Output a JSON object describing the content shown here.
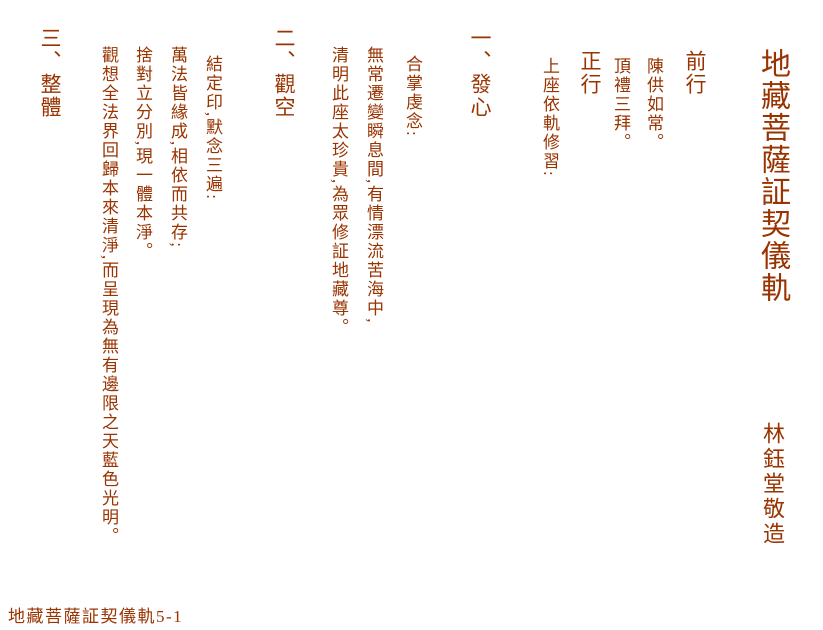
{
  "colors": {
    "ink": "#993300",
    "background": "#ffffff"
  },
  "page": {
    "title": "地藏菩薩証契儀軌",
    "author_signature": "林鈺堂敬造",
    "footer": "地藏菩薩証契儀軌5-1"
  },
  "sections": {
    "preliminary": {
      "heading": "前行",
      "line1": "陳供如常。",
      "line2": "頂禮三拜。"
    },
    "main_practice": {
      "heading": "正行",
      "line1": "上座依軌修習:"
    },
    "step1": {
      "heading": "一、發心",
      "instruction": "合掌虔念:",
      "verse_line1": "無常遷變瞬息間,有情漂流苦海中,",
      "verse_line2": "清明此座太珍貴,為眾修証地藏尊。"
    },
    "step2": {
      "heading": "二、觀空",
      "instruction": "結定印,默念三遍:",
      "verse_line1": "萬法皆緣成,相依而共存;",
      "verse_line2": "捨對立分別,現一體本淨。",
      "visualization": "觀想全法界回歸本來清淨,而呈現為無有邊限之天藍色光明。"
    },
    "step3": {
      "heading": "三、整體"
    }
  }
}
